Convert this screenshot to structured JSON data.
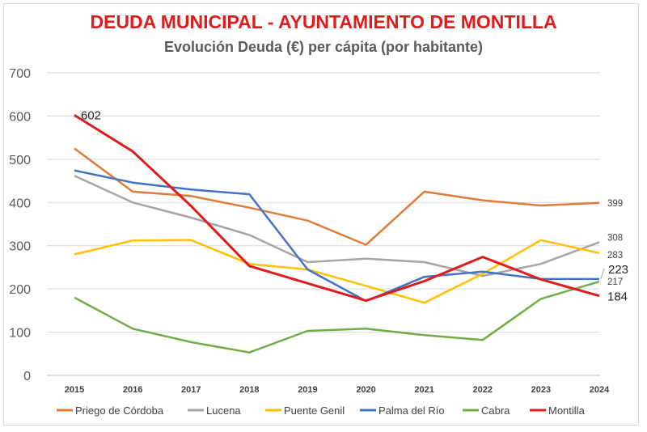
{
  "chart_data": {
    "type": "line",
    "title": "DEUDA MUNICIPAL - AYUNTAMIENTO DE MONTILLA",
    "subtitle": "Evolución Deuda (€) per cápita (por habitante)",
    "xlabel": "",
    "ylabel": "",
    "categories": [
      "2015",
      "2016",
      "2017",
      "2018",
      "2019",
      "2020",
      "2021",
      "2022",
      "2023",
      "2024"
    ],
    "ylim": [
      0,
      700
    ],
    "yticks": [
      "0",
      "100",
      "200",
      "300",
      "400",
      "500",
      "600",
      "700"
    ],
    "grid": true,
    "legend_position": "bottom",
    "series": [
      {
        "name": "Priego de Córdoba",
        "color": "#E07B39",
        "values": [
          525,
          425,
          415,
          388,
          358,
          302,
          425,
          405,
          393,
          399
        ]
      },
      {
        "name": "Lucena",
        "color": "#A5A5A5",
        "values": [
          462,
          400,
          365,
          325,
          262,
          270,
          262,
          230,
          258,
          308
        ]
      },
      {
        "name": "Puente Genil",
        "color": "#FFC000",
        "values": [
          280,
          312,
          313,
          258,
          245,
          207,
          168,
          235,
          313,
          283
        ]
      },
      {
        "name": "Palma del Río",
        "color": "#4472C4",
        "values": [
          474,
          446,
          430,
          419,
          245,
          172,
          228,
          240,
          223,
          223
        ]
      },
      {
        "name": "Cabra",
        "color": "#70AD47",
        "values": [
          180,
          108,
          77,
          53,
          103,
          108,
          93,
          82,
          177,
          217
        ]
      },
      {
        "name": "Montilla",
        "color": "#E01B1B",
        "values": [
          602,
          518,
          392,
          253,
          213,
          173,
          218,
          274,
          222,
          184
        ]
      }
    ],
    "data_labels": [
      {
        "text": "602",
        "series": "Montilla",
        "category": "2015",
        "size": "large"
      },
      {
        "text": "399",
        "series": "Priego de Córdoba",
        "category": "2024",
        "size": "small"
      },
      {
        "text": "308",
        "series": "Lucena",
        "category": "2024",
        "size": "small"
      },
      {
        "text": "283",
        "series": "Puente Genil",
        "category": "2024",
        "size": "small"
      },
      {
        "text": "223",
        "series": "Palma del Río",
        "category": "2024",
        "size": "large"
      },
      {
        "text": "217",
        "series": "Cabra",
        "category": "2024",
        "size": "small"
      },
      {
        "text": "184",
        "series": "Montilla",
        "category": "2024",
        "size": "large"
      }
    ]
  }
}
